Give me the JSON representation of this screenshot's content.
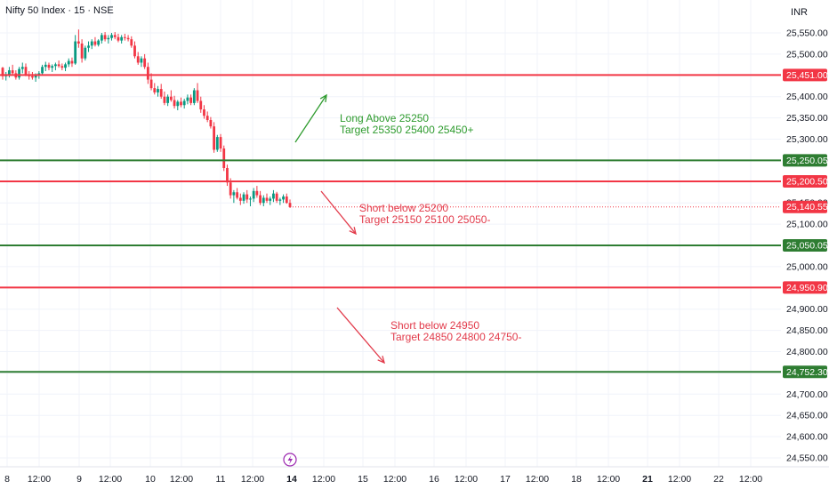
{
  "header": {
    "symbol": "Nifty 50 Index · 15 · NSE",
    "currency": "INR"
  },
  "colors": {
    "up": "#089981",
    "down": "#f23645",
    "red_line": "#f23645",
    "green_line": "#2e7d32",
    "green_text": "#2e9b2e",
    "red_text": "#e23b4b",
    "grid": "#f0f3fa",
    "axis_text": "#131722"
  },
  "icons": {
    "event": "lightning-icon"
  },
  "chart_data": {
    "type": "candlestick",
    "title": "Nifty 50 Index · 15 · NSE",
    "y_axis": {
      "unit": "INR",
      "range": [
        24525,
        25590
      ],
      "ticks": [
        "25,550.00",
        "25,500.00",
        "25,450.00",
        "25,400.00",
        "25,350.00",
        "25,300.00",
        "25,250.00",
        "25,200.00",
        "25,150.00",
        "25,100.00",
        "25,050.00",
        "25,000.00",
        "24,950.00",
        "24,900.00",
        "24,850.00",
        "24,800.00",
        "24,750.00",
        "24,700.00",
        "24,650.00",
        "24,600.00",
        "24,550.00"
      ],
      "tick_values": [
        25550,
        25500,
        25450,
        25400,
        25350,
        25300,
        25250,
        25200,
        25150,
        25100,
        25050,
        25000,
        24950,
        24900,
        24850,
        24800,
        24750,
        24700,
        24650,
        24600,
        24550
      ]
    },
    "x_axis": {
      "ticks": [
        "8",
        "12:00",
        "9",
        "12:00",
        "10",
        "12:00",
        "11",
        "12:00",
        "14",
        "12:00",
        "15",
        "12:00",
        "16",
        "12:00",
        "17",
        "12:00",
        "18",
        "12:00",
        "21",
        "12:00",
        "22",
        "12:00"
      ],
      "bold": [
        "14",
        "21"
      ]
    },
    "levels": [
      {
        "value": 25451.0,
        "label": "25,451.00",
        "color": "red"
      },
      {
        "value": 25250.05,
        "label": "25,250.05",
        "color": "green"
      },
      {
        "value": 25200.5,
        "label": "25,200.50",
        "color": "red"
      },
      {
        "value": 25050.05,
        "label": "25,050.05",
        "color": "green"
      },
      {
        "value": 24950.9,
        "label": "24,950.90",
        "color": "red"
      },
      {
        "value": 24752.3,
        "label": "24,752.30",
        "color": "green"
      }
    ],
    "last_price": {
      "value": 25140.55,
      "label": "25,140.55"
    },
    "annotations": [
      {
        "lines": [
          "Long  Above 25250",
          "Target 25350 25400 25450+"
        ],
        "color": "green",
        "arrow": "up"
      },
      {
        "lines": [
          "Short below 25200",
          "Target 25150 25100 25050-"
        ],
        "color": "red",
        "arrow": "down"
      },
      {
        "lines": [
          "Short below 24950",
          "Target 24850 24800 24750-"
        ],
        "color": "red",
        "arrow": "down"
      }
    ],
    "candles": [
      [
        25468,
        25470,
        25440,
        25448
      ],
      [
        25448,
        25458,
        25438,
        25452
      ],
      [
        25452,
        25470,
        25445,
        25462
      ],
      [
        25462,
        25475,
        25450,
        25455
      ],
      [
        25455,
        25462,
        25440,
        25445
      ],
      [
        25445,
        25470,
        25440,
        25465
      ],
      [
        25465,
        25480,
        25455,
        25470
      ],
      [
        25470,
        25478,
        25448,
        25452
      ],
      [
        25452,
        25460,
        25440,
        25448
      ],
      [
        25448,
        25458,
        25440,
        25445
      ],
      [
        25445,
        25455,
        25435,
        25450
      ],
      [
        25450,
        25460,
        25442,
        25455
      ],
      [
        25455,
        25475,
        25450,
        25470
      ],
      [
        25470,
        25482,
        25460,
        25475
      ],
      [
        25475,
        25480,
        25462,
        25468
      ],
      [
        25468,
        25476,
        25458,
        25472
      ],
      [
        25472,
        25480,
        25462,
        25476
      ],
      [
        25476,
        25485,
        25468,
        25472
      ],
      [
        25472,
        25478,
        25462,
        25468
      ],
      [
        25468,
        25480,
        25460,
        25476
      ],
      [
        25476,
        25490,
        25470,
        25484
      ],
      [
        25484,
        25492,
        25470,
        25478
      ],
      [
        25478,
        25545,
        25475,
        25530
      ],
      [
        25530,
        25558,
        25515,
        25525
      ],
      [
        25525,
        25535,
        25480,
        25490
      ],
      [
        25490,
        25520,
        25485,
        25515
      ],
      [
        25515,
        25530,
        25505,
        25520
      ],
      [
        25520,
        25535,
        25512,
        25530
      ],
      [
        25530,
        25540,
        25518,
        25522
      ],
      [
        25522,
        25535,
        25518,
        25532
      ],
      [
        25532,
        25550,
        25525,
        25545
      ],
      [
        25545,
        25552,
        25530,
        25535
      ],
      [
        25535,
        25545,
        25525,
        25538
      ],
      [
        25538,
        25550,
        25532,
        25545
      ],
      [
        25545,
        25552,
        25535,
        25540
      ],
      [
        25540,
        25548,
        25528,
        25532
      ],
      [
        25532,
        25545,
        25525,
        25540
      ],
      [
        25540,
        25548,
        25532,
        25538
      ],
      [
        25538,
        25545,
        25530,
        25535
      ],
      [
        25535,
        25542,
        25515,
        25520
      ],
      [
        25520,
        25530,
        25490,
        25495
      ],
      [
        25495,
        25505,
        25475,
        25480
      ],
      [
        25480,
        25495,
        25470,
        25490
      ],
      [
        25490,
        25500,
        25465,
        25470
      ],
      [
        25470,
        25480,
        25430,
        25440
      ],
      [
        25440,
        25455,
        25415,
        25420
      ],
      [
        25420,
        25432,
        25405,
        25410
      ],
      [
        25410,
        25425,
        25400,
        25418
      ],
      [
        25418,
        25430,
        25395,
        25400
      ],
      [
        25400,
        25412,
        25380,
        25385
      ],
      [
        25385,
        25405,
        25378,
        25400
      ],
      [
        25400,
        25415,
        25388,
        25392
      ],
      [
        25392,
        25402,
        25372,
        25378
      ],
      [
        25378,
        25392,
        25368,
        25388
      ],
      [
        25388,
        25398,
        25375,
        25380
      ],
      [
        25380,
        25395,
        25372,
        25390
      ],
      [
        25390,
        25405,
        25382,
        25398
      ],
      [
        25398,
        25405,
        25380,
        25385
      ],
      [
        25385,
        25420,
        25380,
        25415
      ],
      [
        25415,
        25432,
        25385,
        25390
      ],
      [
        25390,
        25400,
        25362,
        25370
      ],
      [
        25370,
        25380,
        25348,
        25355
      ],
      [
        25355,
        25365,
        25340,
        25345
      ],
      [
        25345,
        25352,
        25325,
        25330
      ],
      [
        25330,
        25340,
        25268,
        25275
      ],
      [
        25275,
        25310,
        25270,
        25305
      ],
      [
        25305,
        25312,
        25270,
        25278
      ],
      [
        25278,
        25285,
        25225,
        25232
      ],
      [
        25232,
        25240,
        25190,
        25198
      ],
      [
        25198,
        25208,
        25160,
        25168
      ],
      [
        25168,
        25180,
        25150,
        25175
      ],
      [
        25175,
        25185,
        25158,
        25162
      ],
      [
        25162,
        25172,
        25145,
        25155
      ],
      [
        25155,
        25175,
        25148,
        25170
      ],
      [
        25170,
        25180,
        25150,
        25158
      ],
      [
        25158,
        25165,
        25142,
        25160
      ],
      [
        25160,
        25185,
        25152,
        25178
      ],
      [
        25178,
        25190,
        25162,
        25168
      ],
      [
        25168,
        25178,
        25145,
        25150
      ],
      [
        25150,
        25168,
        25142,
        25162
      ],
      [
        25162,
        25172,
        25150,
        25155
      ],
      [
        25155,
        25165,
        25145,
        25160
      ],
      [
        25160,
        25180,
        25152,
        25172
      ],
      [
        25172,
        25176,
        25150,
        25155
      ],
      [
        25155,
        25162,
        25145,
        25158
      ],
      [
        25158,
        25170,
        25150,
        25165
      ],
      [
        25165,
        25172,
        25148,
        25150
      ],
      [
        25150,
        25158,
        25138,
        25140
      ]
    ]
  }
}
